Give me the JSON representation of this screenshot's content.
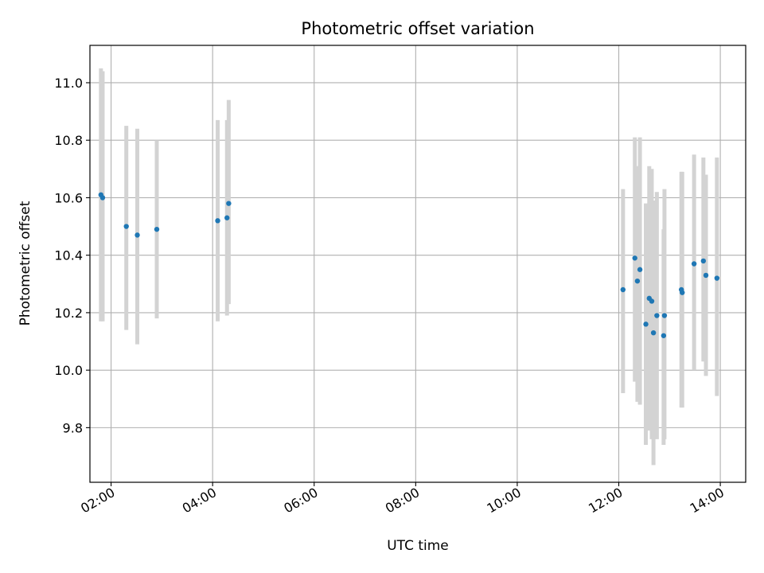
{
  "chart_data": {
    "type": "scatter",
    "title": "Photometric offset variation",
    "xlabel": "UTC time",
    "ylabel": "Photometric offset",
    "x_is_time": true,
    "xlim": [
      "01:35",
      "14:30"
    ],
    "ylim": [
      9.61,
      11.13
    ],
    "xticks": [
      "02:00",
      "04:00",
      "06:00",
      "08:00",
      "10:00",
      "12:00",
      "14:00"
    ],
    "yticks": [
      "9.8",
      "10.0",
      "10.2",
      "10.4",
      "10.6",
      "10.8",
      "11.0"
    ],
    "grid": true,
    "colors": {
      "points": "#1f77b4",
      "errorbars": "#d3d3d3",
      "grid": "#b0b0b0"
    },
    "series": [
      {
        "points": [
          {
            "x": "01:48",
            "y": 10.61,
            "ylo": 10.17,
            "yhi": 11.05
          },
          {
            "x": "01:50",
            "y": 10.6,
            "ylo": 10.17,
            "yhi": 11.04
          },
          {
            "x": "02:18",
            "y": 10.5,
            "ylo": 10.14,
            "yhi": 10.85
          },
          {
            "x": "02:31",
            "y": 10.47,
            "ylo": 10.09,
            "yhi": 10.84
          },
          {
            "x": "02:54",
            "y": 10.49,
            "ylo": 10.18,
            "yhi": 10.8
          },
          {
            "x": "04:06",
            "y": 10.52,
            "ylo": 10.17,
            "yhi": 10.87
          },
          {
            "x": "04:17",
            "y": 10.53,
            "ylo": 10.19,
            "yhi": 10.87
          },
          {
            "x": "04:19",
            "y": 10.58,
            "ylo": 10.23,
            "yhi": 10.94
          },
          {
            "x": "12:05",
            "y": 10.28,
            "ylo": 9.92,
            "yhi": 10.63
          },
          {
            "x": "12:19",
            "y": 10.39,
            "ylo": 9.96,
            "yhi": 10.81
          },
          {
            "x": "12:22",
            "y": 10.31,
            "ylo": 9.89,
            "yhi": 10.71
          },
          {
            "x": "12:25",
            "y": 10.35,
            "ylo": 9.88,
            "yhi": 10.81
          },
          {
            "x": "12:32",
            "y": 10.16,
            "ylo": 9.74,
            "yhi": 10.58
          },
          {
            "x": "12:36",
            "y": 10.25,
            "ylo": 9.79,
            "yhi": 10.71
          },
          {
            "x": "12:39",
            "y": 10.24,
            "ylo": 9.76,
            "yhi": 10.7
          },
          {
            "x": "12:41",
            "y": 10.13,
            "ylo": 9.67,
            "yhi": 10.59
          },
          {
            "x": "12:45",
            "y": 10.19,
            "ylo": 9.76,
            "yhi": 10.62
          },
          {
            "x": "12:53",
            "y": 10.12,
            "ylo": 9.74,
            "yhi": 10.49
          },
          {
            "x": "12:54",
            "y": 10.19,
            "ylo": 9.76,
            "yhi": 10.63
          },
          {
            "x": "13:14",
            "y": 10.28,
            "ylo": 9.87,
            "yhi": 10.69
          },
          {
            "x": "13:15",
            "y": 10.27,
            "ylo": 9.87,
            "yhi": 10.69
          },
          {
            "x": "13:29",
            "y": 10.37,
            "ylo": 10.0,
            "yhi": 10.75
          },
          {
            "x": "13:40",
            "y": 10.38,
            "ylo": 10.03,
            "yhi": 10.74
          },
          {
            "x": "13:43",
            "y": 10.33,
            "ylo": 9.98,
            "yhi": 10.68
          },
          {
            "x": "13:56",
            "y": 10.32,
            "ylo": 9.91,
            "yhi": 10.74
          }
        ]
      }
    ]
  }
}
